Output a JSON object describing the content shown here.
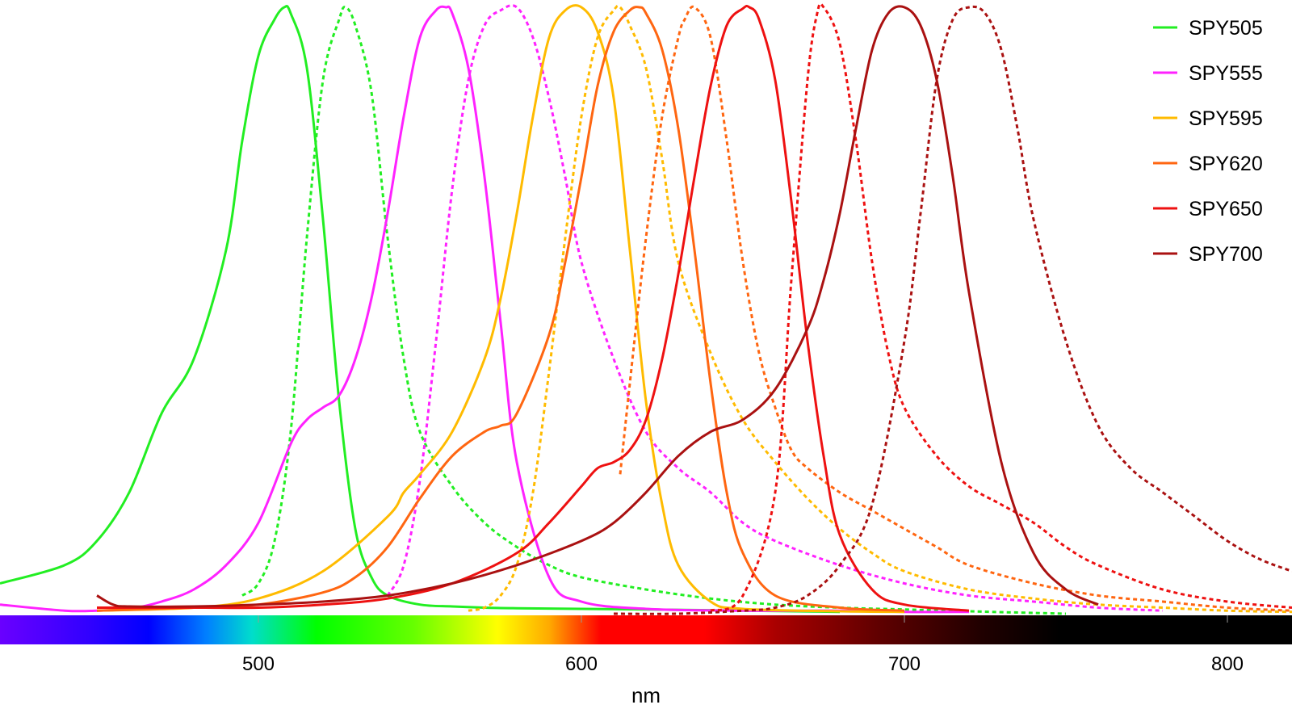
{
  "chart_data": {
    "type": "line",
    "xlabel": "nm",
    "xlim": [
      420,
      820
    ],
    "ylim": [
      0,
      1
    ],
    "x_ticks": [
      500,
      600,
      700,
      800
    ],
    "grid": false,
    "legend_position": "top-right",
    "spectrum_bar": "visible spectrum color bar along the x axis (violet to black)",
    "series": [
      {
        "name": "SPY505",
        "color": "#22ee22",
        "excitation": {
          "x": [
            420,
            440,
            450,
            460,
            470,
            480,
            490,
            495,
            500,
            505,
            508,
            510,
            515,
            520,
            525,
            530,
            535,
            540,
            550,
            560,
            570,
            580,
            600,
            620,
            650,
            680
          ],
          "y": [
            0.05,
            0.08,
            0.12,
            0.2,
            0.33,
            0.42,
            0.6,
            0.78,
            0.92,
            0.98,
            1.0,
            0.99,
            0.9,
            0.65,
            0.35,
            0.14,
            0.06,
            0.03,
            0.015,
            0.012,
            0.01,
            0.009,
            0.008,
            0.007,
            0.005,
            0.003
          ]
        },
        "emission": {
          "x": [
            495,
            500,
            505,
            510,
            515,
            520,
            525,
            527,
            530,
            535,
            540,
            545,
            550,
            560,
            570,
            580,
            590,
            600,
            620,
            640,
            660,
            680,
            700,
            720,
            750
          ],
          "y": [
            0.03,
            0.05,
            0.12,
            0.3,
            0.62,
            0.88,
            0.98,
            1.0,
            0.97,
            0.86,
            0.62,
            0.42,
            0.3,
            0.21,
            0.15,
            0.11,
            0.08,
            0.06,
            0.04,
            0.025,
            0.015,
            0.01,
            0.007,
            0.004,
            0.0
          ]
        }
      },
      {
        "name": "SPY555",
        "color": "#ff22ff",
        "excitation": {
          "x": [
            420,
            440,
            450,
            460,
            470,
            480,
            490,
            500,
            510,
            515,
            520,
            525,
            530,
            535,
            540,
            545,
            550,
            555,
            558,
            560,
            565,
            570,
            575,
            580,
            590,
            600,
            620,
            650,
            680,
            700,
            720
          ],
          "y": [
            0.015,
            0.005,
            0.005,
            0.008,
            0.02,
            0.04,
            0.08,
            0.15,
            0.28,
            0.32,
            0.34,
            0.36,
            0.42,
            0.52,
            0.66,
            0.82,
            0.95,
            0.995,
            1.0,
            0.99,
            0.9,
            0.72,
            0.48,
            0.25,
            0.06,
            0.02,
            0.008,
            0.005,
            0.005,
            0.003,
            0.003
          ]
        },
        "emission": {
          "x": [
            540,
            545,
            550,
            555,
            560,
            565,
            570,
            575,
            580,
            585,
            590,
            595,
            600,
            610,
            620,
            630,
            640,
            650,
            660,
            680,
            700,
            720,
            740,
            760,
            780
          ],
          "y": [
            0.03,
            0.08,
            0.22,
            0.45,
            0.7,
            0.88,
            0.97,
            0.995,
            1.0,
            0.95,
            0.85,
            0.72,
            0.58,
            0.42,
            0.3,
            0.24,
            0.2,
            0.15,
            0.12,
            0.08,
            0.05,
            0.03,
            0.02,
            0.01,
            0.005
          ]
        }
      },
      {
        "name": "SPY595",
        "color": "#ffbb00",
        "excitation": {
          "x": [
            450,
            480,
            500,
            520,
            540,
            545,
            550,
            560,
            570,
            575,
            580,
            585,
            590,
            595,
            600,
            605,
            610,
            615,
            620,
            625,
            630,
            640,
            650,
            680,
            700
          ],
          "y": [
            0.005,
            0.01,
            0.025,
            0.07,
            0.16,
            0.2,
            0.23,
            0.3,
            0.42,
            0.52,
            0.66,
            0.82,
            0.95,
            0.995,
            1.0,
            0.96,
            0.85,
            0.6,
            0.35,
            0.18,
            0.08,
            0.02,
            0.008,
            0.004,
            0.003
          ]
        },
        "emission": {
          "x": [
            565,
            570,
            575,
            580,
            585,
            590,
            595,
            600,
            605,
            610,
            612,
            615,
            620,
            625,
            630,
            640,
            650,
            660,
            670,
            680,
            690,
            700,
            720,
            740,
            760,
            780,
            800,
            820
          ],
          "y": [
            0.005,
            0.01,
            0.03,
            0.08,
            0.2,
            0.4,
            0.62,
            0.82,
            0.95,
            0.995,
            1.0,
            0.97,
            0.9,
            0.75,
            0.58,
            0.43,
            0.32,
            0.25,
            0.19,
            0.14,
            0.1,
            0.07,
            0.04,
            0.025,
            0.015,
            0.01,
            0.005,
            0.003
          ]
        }
      },
      {
        "name": "SPY620",
        "color": "#ff6611",
        "excitation": {
          "x": [
            450,
            480,
            500,
            520,
            530,
            540,
            550,
            560,
            570,
            575,
            580,
            590,
            595,
            600,
            605,
            610,
            615,
            618,
            620,
            625,
            630,
            635,
            640,
            645,
            650,
            660,
            680,
            700
          ],
          "y": [
            0.005,
            0.01,
            0.015,
            0.035,
            0.06,
            0.11,
            0.19,
            0.26,
            0.3,
            0.31,
            0.33,
            0.46,
            0.58,
            0.72,
            0.87,
            0.96,
            0.995,
            1.0,
            0.99,
            0.93,
            0.8,
            0.6,
            0.38,
            0.2,
            0.1,
            0.03,
            0.01,
            0.005
          ]
        },
        "emission": {
          "x": [
            612,
            615,
            620,
            625,
            630,
            632,
            635,
            640,
            645,
            650,
            655,
            660,
            665,
            670,
            680,
            690,
            700,
            710,
            720,
            740,
            760,
            780,
            800,
            820
          ],
          "y": [
            0.23,
            0.38,
            0.62,
            0.82,
            0.95,
            0.98,
            1.0,
            0.95,
            0.78,
            0.58,
            0.43,
            0.34,
            0.27,
            0.24,
            0.2,
            0.17,
            0.14,
            0.11,
            0.08,
            0.05,
            0.03,
            0.02,
            0.01,
            0.005
          ]
        }
      },
      {
        "name": "SPY650",
        "color": "#ee1111",
        "excitation": {
          "x": [
            450,
            480,
            500,
            520,
            540,
            560,
            580,
            590,
            600,
            605,
            610,
            615,
            620,
            625,
            630,
            635,
            640,
            645,
            650,
            652,
            655,
            660,
            665,
            670,
            675,
            680,
            690,
            700,
            720
          ],
          "y": [
            0.01,
            0.01,
            0.01,
            0.015,
            0.025,
            0.05,
            0.1,
            0.15,
            0.21,
            0.24,
            0.25,
            0.27,
            0.32,
            0.42,
            0.56,
            0.72,
            0.87,
            0.97,
            0.998,
            1.0,
            0.98,
            0.88,
            0.68,
            0.45,
            0.26,
            0.13,
            0.04,
            0.015,
            0.005
          ]
        },
        "emission": {
          "x": [
            640,
            650,
            660,
            665,
            670,
            673,
            675,
            680,
            685,
            690,
            695,
            700,
            710,
            720,
            730,
            740,
            750,
            760,
            780,
            800,
            820
          ],
          "y": [
            0.005,
            0.03,
            0.2,
            0.55,
            0.88,
            0.99,
            1.0,
            0.94,
            0.78,
            0.58,
            0.43,
            0.34,
            0.26,
            0.21,
            0.18,
            0.15,
            0.11,
            0.08,
            0.04,
            0.02,
            0.01
          ]
        }
      },
      {
        "name": "SPY700",
        "color": "#aa1111",
        "excitation": {
          "x": [
            450,
            455,
            460,
            480,
            500,
            520,
            540,
            560,
            580,
            600,
            610,
            620,
            630,
            640,
            650,
            660,
            670,
            675,
            680,
            685,
            690,
            695,
            700,
            705,
            710,
            715,
            720,
            730,
            740,
            750,
            760
          ],
          "y": [
            0.03,
            0.015,
            0.012,
            0.012,
            0.015,
            0.02,
            0.03,
            0.05,
            0.08,
            0.12,
            0.15,
            0.2,
            0.26,
            0.3,
            0.32,
            0.37,
            0.47,
            0.55,
            0.66,
            0.8,
            0.93,
            0.99,
            1.0,
            0.97,
            0.88,
            0.72,
            0.53,
            0.25,
            0.1,
            0.04,
            0.015
          ]
        },
        "emission": {
          "x": [
            610,
            630,
            650,
            660,
            670,
            680,
            690,
            700,
            705,
            710,
            715,
            720,
            725,
            730,
            735,
            740,
            750,
            760,
            770,
            780,
            790,
            800,
            810,
            820
          ],
          "y": [
            0.0,
            0.0,
            0.005,
            0.01,
            0.03,
            0.08,
            0.18,
            0.45,
            0.66,
            0.88,
            0.98,
            1.0,
            0.99,
            0.93,
            0.8,
            0.65,
            0.45,
            0.31,
            0.24,
            0.2,
            0.16,
            0.12,
            0.09,
            0.07
          ]
        }
      }
    ]
  }
}
